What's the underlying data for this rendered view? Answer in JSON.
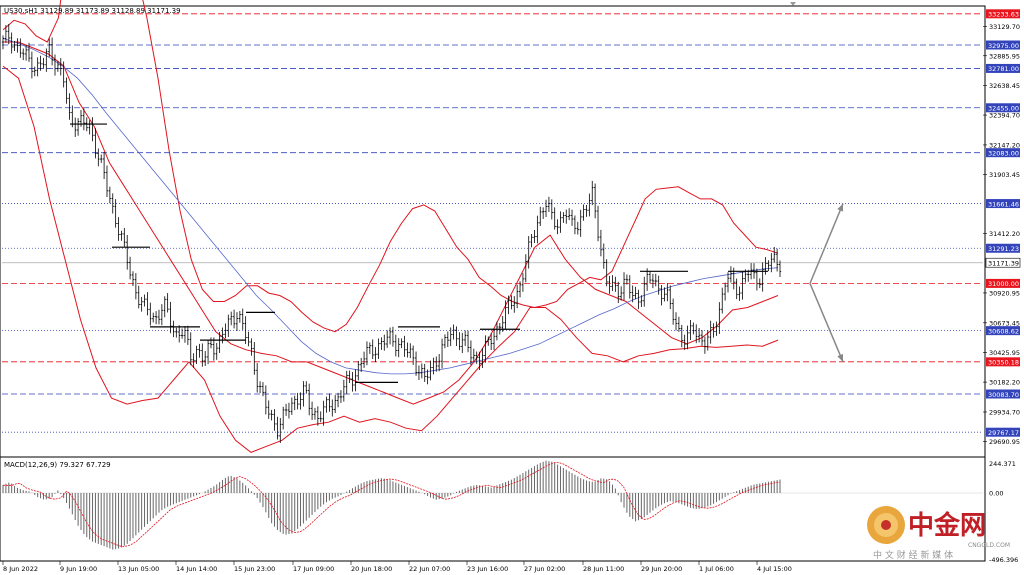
{
  "header": {
    "symbol_line": "US30.sH1  31129.89 31173.89 31128.89 31171.39",
    "macd_label": "MACD(12,26,9) 79.327 67.729"
  },
  "watermark": {
    "brand_cn": "中金网",
    "brand_en": "CNGOLD.COM",
    "slogan": "中 文 财 经 新 媒 体"
  },
  "colors": {
    "price": "#000000",
    "bollinger": "#e0141e",
    "ma": "#5566cc",
    "red_level_fill": "#e8141e",
    "blue_level_fill": "#3344bb",
    "current_price_fill": "#ffffff",
    "macd_hist": "#666666",
    "macd_signal": "#e0141e",
    "arrow": "#888888"
  },
  "chart_data": {
    "type": "candlestick",
    "symbol": "US30.s",
    "timeframe": "H1",
    "ohlc_current": {
      "open": 31129.89,
      "high": 31173.89,
      "low": 31128.89,
      "close": 31171.39
    },
    "y_range": [
      29570,
      33290
    ],
    "axis_ticks": [
      "33129.70",
      "32885.95",
      "32638.45",
      "32394.70",
      "32147.20",
      "31903.45",
      "31412.20",
      "30920.95",
      "30673.45",
      "30425.95",
      "30182.20",
      "29934.70",
      "29690.95"
    ],
    "x_labels": [
      "8 Jun 2022",
      "9 Jun 19:00",
      "13 Jun 05:00",
      "14 Jun 14:00",
      "15 Jun 23:00",
      "17 Jun 09:00",
      "20 Jun 18:00",
      "22 Jun 07:00",
      "23 Jun 16:00",
      "27 Jun 02:00",
      "28 Jun 11:00",
      "29 Jun 20:00",
      "1 Jul 06:00",
      "4 Jul 15:00"
    ],
    "levels": [
      {
        "value": "33233.63",
        "color": "red",
        "style": "dashed"
      },
      {
        "value": "32975.00",
        "color": "blue",
        "style": "dashed"
      },
      {
        "value": "32781.00",
        "color": "blue",
        "style": "dashed"
      },
      {
        "value": "32455.00",
        "color": "blue",
        "style": "dashed"
      },
      {
        "value": "32083.00",
        "color": "blue",
        "style": "dashed"
      },
      {
        "value": "31661.46",
        "color": "blue",
        "style": "dotted"
      },
      {
        "value": "31291.23",
        "color": "blue",
        "style": "dotted"
      },
      {
        "value": "31171.39",
        "color": "current",
        "style": "solid"
      },
      {
        "value": "31000.00",
        "color": "red",
        "style": "dashed"
      },
      {
        "value": "30608.62",
        "color": "blue",
        "style": "dotted"
      },
      {
        "value": "30350.18",
        "color": "red",
        "style": "dashed"
      },
      {
        "value": "30083.70",
        "color": "blue",
        "style": "dashed"
      },
      {
        "value": "29767.17",
        "color": "blue",
        "style": "dotted"
      }
    ],
    "close_series": [
      33000,
      33060,
      32950,
      32900,
      32850,
      32780,
      32820,
      32960,
      32800,
      32700,
      32350,
      32340,
      32320,
      32300,
      32100,
      31900,
      31700,
      31500,
      31300,
      31100,
      30900,
      30800,
      30760,
      30700,
      30820,
      30700,
      30560,
      30600,
      30400,
      30450,
      30350,
      30500,
      30480,
      30600,
      30700,
      30760,
      30600,
      30450,
      30200,
      30000,
      29900,
      29800,
      29900,
      30000,
      30050,
      30100,
      29950,
      29900,
      29950,
      30000,
      30050,
      30150,
      30200,
      30300,
      30400,
      30450,
      30480,
      30520,
      30550,
      30500,
      30450,
      30400,
      30300,
      30200,
      30300,
      30400,
      30500,
      30600,
      30550,
      30500,
      30400,
      30380,
      30450,
      30550,
      30650,
      30750,
      30850,
      30950,
      31150,
      31400,
      31550,
      31650,
      31550,
      31500,
      31580,
      31480,
      31520,
      31600,
      31750,
      31400,
      31000,
      30980,
      30950,
      31000,
      30900,
      30880,
      31000,
      31050,
      30950,
      30900,
      30750,
      30600,
      30500,
      30650,
      30550,
      30500,
      30600,
      30800,
      31050,
      31000,
      30950,
      31100,
      31050,
      31050,
      31150,
      31200,
      31171
    ],
    "bb_upper": [
      33100,
      33180,
      33150,
      33050,
      33000,
      33200,
      33900,
      34200,
      34300,
      34300,
      34200,
      33900,
      33600,
      33200,
      32700,
      32100,
      31600,
      31200,
      30950,
      30850,
      30850,
      30900,
      30980,
      30980,
      30920,
      30900,
      30850,
      30760,
      30680,
      30630,
      30600,
      30660,
      30800,
      30980,
      31150,
      31350,
      31500,
      31620,
      31650,
      31600,
      31450,
      31300,
      31200,
      31050,
      30980,
      30900,
      30850,
      30820,
      30800,
      30820,
      30850,
      30950,
      31000,
      31050,
      31030,
      31100,
      31300,
      31500,
      31700,
      31780,
      31790,
      31800,
      31750,
      31700,
      31700,
      31650,
      31500,
      31400,
      31300,
      31280,
      31250
    ],
    "bb_middle": [
      33000,
      33000,
      32950,
      32900,
      32800,
      32500,
      32300,
      32000,
      31800,
      31600,
      31400,
      31200,
      31000,
      30800,
      30600,
      30500,
      30450,
      30420,
      30400,
      30350,
      30350,
      30300,
      30250,
      30200,
      30150,
      30100,
      30050,
      30000,
      30050,
      30100,
      30200,
      30350,
      30550,
      30800,
      31050,
      31300,
      31400,
      31200,
      31050,
      30950,
      30900,
      30850,
      30750,
      30650,
      30550,
      30500,
      30550,
      30650,
      30780,
      30800,
      30850,
      30900
    ],
    "bb_lower": [
      32800,
      32700,
      32300,
      31700,
      31200,
      30700,
      30300,
      30050,
      30000,
      30030,
      30050,
      30200,
      30350,
      30200,
      29900,
      29700,
      29600,
      29650,
      29700,
      29800,
      29830,
      29850,
      29900,
      29850,
      29880,
      29850,
      29800,
      29780,
      29900,
      30050,
      30200,
      30350,
      30480,
      30600,
      30800,
      30800,
      30700,
      30550,
      30420,
      30400,
      30350,
      30400,
      30420,
      30450,
      30460,
      30480,
      30470,
      30480,
      30490,
      30480,
      30530
    ],
    "ma200": [
      33030,
      32990,
      32940,
      32880,
      32800,
      32700,
      32560,
      32400,
      32250,
      32100,
      31950,
      31800,
      31650,
      31500,
      31350,
      31200,
      31050,
      30900,
      30780,
      30650,
      30520,
      30420,
      30350,
      30300,
      30280,
      30260,
      30250,
      30250,
      30260,
      30280,
      30300,
      30330,
      30360,
      30390,
      30420,
      30460,
      30500,
      30560,
      30620,
      30680,
      30740,
      30790,
      30850,
      30900,
      30940,
      30980,
      31010,
      31040,
      31060,
      31080,
      31100,
      31120,
      31130
    ],
    "forecast_arrows": [
      {
        "direction": "up",
        "from": 31000,
        "to": 31661.46
      },
      {
        "direction": "down",
        "from": 31000,
        "to": 30350.18
      }
    ],
    "macd": {
      "params": "12,26,9",
      "main": 79.327,
      "signal": 67.729,
      "y_ticks": [
        "244.371",
        "0.00",
        "-496.396"
      ],
      "hist": [
        60,
        80,
        40,
        20,
        10,
        -30,
        -50,
        -40,
        20,
        -50,
        -150,
        -250,
        -320,
        -360,
        -380,
        -400,
        -420,
        -410,
        -380,
        -330,
        -280,
        -230,
        -180,
        -130,
        -100,
        -80,
        -60,
        -40,
        -20,
        0,
        30,
        60,
        100,
        130,
        110,
        70,
        20,
        -40,
        -120,
        -220,
        -280,
        -310,
        -300,
        -260,
        -210,
        -160,
        -110,
        -70,
        -40,
        -20,
        10,
        40,
        70,
        90,
        100,
        110,
        100,
        80,
        60,
        40,
        20,
        0,
        -30,
        -50,
        -40,
        -20,
        10,
        30,
        50,
        60,
        50,
        40,
        60,
        80,
        100,
        130,
        160,
        190,
        220,
        240,
        230,
        200,
        170,
        140,
        110,
        90,
        80,
        110,
        100,
        40,
        -80,
        -170,
        -210,
        -190,
        -150,
        -110,
        -80,
        -60,
        -70,
        -90,
        -110,
        -120,
        -110,
        -90,
        -60,
        -30,
        0,
        20,
        40,
        60,
        70,
        80,
        90,
        100
      ]
    }
  }
}
